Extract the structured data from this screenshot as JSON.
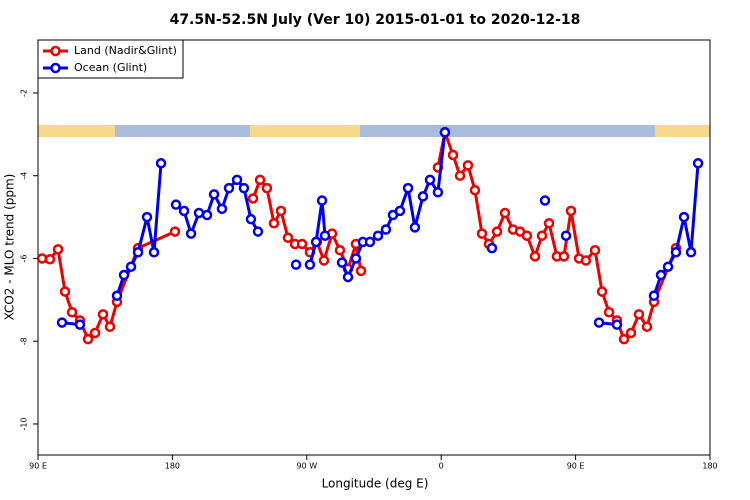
{
  "chart_data": {
    "type": "line",
    "title": "47.5N-52.5N July (Ver 10)   2015-01-01 to 2020-12-18",
    "x_label": "Longitude (deg E)",
    "y_label": "XCO2 - MLO trend (ppm)",
    "xlim": [
      90,
      540
    ],
    "xticks": [
      {
        "value": 90,
        "label": "90 E"
      },
      180,
      {
        "value": 270,
        "label": "90 W"
      },
      {
        "value": 360,
        "label": "0"
      },
      {
        "value": 450,
        "label": "90 E"
      },
      {
        "value": 540,
        "label": "180"
      }
    ],
    "ylim": [
      -10.75,
      -0.72
    ],
    "yticks": [
      -2,
      -4,
      -6,
      -8,
      -10
    ],
    "legend": "top-left",
    "series": [
      {
        "name": "Land (Nadir&Glint)",
        "color": "#ee0000",
        "x": [
          92.7,
          98.0,
          103.4,
          108.1,
          112.8,
          118.1,
          123.5,
          128.2,
          133.5,
          138.2,
          142.9,
          157.0,
          181.7,
          null,
          234.0,
          238.7,
          243.3,
          248.0,
          252.7,
          257.4,
          262.1,
          266.8,
          272.1,
          276.8,
          281.5,
          286.9,
          292.2,
          297.6,
          302.9,
          306.3,
          null,
          357.8,
          362.5,
          367.9,
          372.6,
          377.9,
          382.6,
          387.3,
          392.0,
          397.4,
          402.7,
          408.1,
          412.8,
          417.4,
          422.8,
          427.5,
          432.2,
          437.5,
          442.2,
          446.9,
          452.3,
          456.9,
          463.0,
          467.7,
          472.4,
          477.7,
          482.4,
          487.1,
          492.4,
          497.8,
          502.5,
          517.2
        ],
        "values": [
          -6.0,
          -6.02,
          -5.78,
          -6.8,
          -7.3,
          -7.5,
          -7.95,
          -7.8,
          -7.35,
          -7.65,
          -7.05,
          -5.75,
          -5.35,
          null,
          -4.55,
          -4.1,
          -4.3,
          -5.15,
          -4.85,
          -5.5,
          -5.65,
          -5.65,
          -5.85,
          -5.6,
          -6.05,
          -5.4,
          -5.8,
          -6.25,
          -5.65,
          -6.3,
          null,
          -3.8,
          -2.95,
          -3.5,
          -4.0,
          -3.75,
          -4.35,
          -5.4,
          -5.65,
          -5.35,
          -4.9,
          -5.3,
          -5.35,
          -5.45,
          -5.95,
          -5.45,
          -5.15,
          -5.95,
          -5.95,
          -4.85,
          -6.0,
          -6.05,
          -5.8,
          -6.8,
          -7.3,
          -7.5,
          -7.95,
          -7.8,
          -7.35,
          -7.65,
          -7.05,
          -5.75
        ]
      },
      {
        "name": "Ocean (Glint)",
        "color": "#0000ee",
        "x": [
          106.1,
          118.1,
          null,
          142.9,
          147.6,
          152.3,
          157.0,
          163.0,
          167.7,
          172.4,
          null,
          182.4,
          187.8,
          192.5,
          197.8,
          203.2,
          207.9,
          213.2,
          217.9,
          223.3,
          227.9,
          232.6,
          237.3,
          null,
          262.8,
          null,
          272.1,
          276.2,
          280.2,
          282.2,
          null,
          293.6,
          297.6,
          302.9,
          307.6,
          312.3,
          317.7,
          323.0,
          327.7,
          332.4,
          337.8,
          342.4,
          347.8,
          352.5,
          357.8,
          362.5,
          null,
          394.0,
          null,
          429.5,
          null,
          443.6,
          null,
          465.7,
          477.7,
          null,
          502.5,
          507.2,
          511.9,
          517.2,
          522.6,
          527.3,
          532.0
        ],
        "values": [
          -7.55,
          -7.6,
          null,
          -6.9,
          -6.4,
          -6.2,
          -5.85,
          -5.0,
          -5.85,
          -3.7,
          null,
          -4.7,
          -4.85,
          -5.4,
          -4.9,
          -4.95,
          -4.45,
          -4.8,
          -4.3,
          -4.1,
          -4.3,
          -5.05,
          -5.35,
          null,
          -6.15,
          null,
          -6.15,
          -5.6,
          -4.6,
          -5.45,
          null,
          -6.1,
          -6.45,
          -6.0,
          -5.6,
          -5.6,
          -5.45,
          -5.3,
          -4.95,
          -4.85,
          -4.3,
          -5.25,
          -4.5,
          -4.1,
          -4.4,
          -2.95,
          null,
          -5.75,
          null,
          -4.6,
          null,
          -5.45,
          null,
          -7.55,
          -7.6,
          null,
          -6.9,
          -6.4,
          -6.2,
          -5.85,
          -5.0,
          -5.85,
          -3.7
        ]
      }
    ]
  }
}
